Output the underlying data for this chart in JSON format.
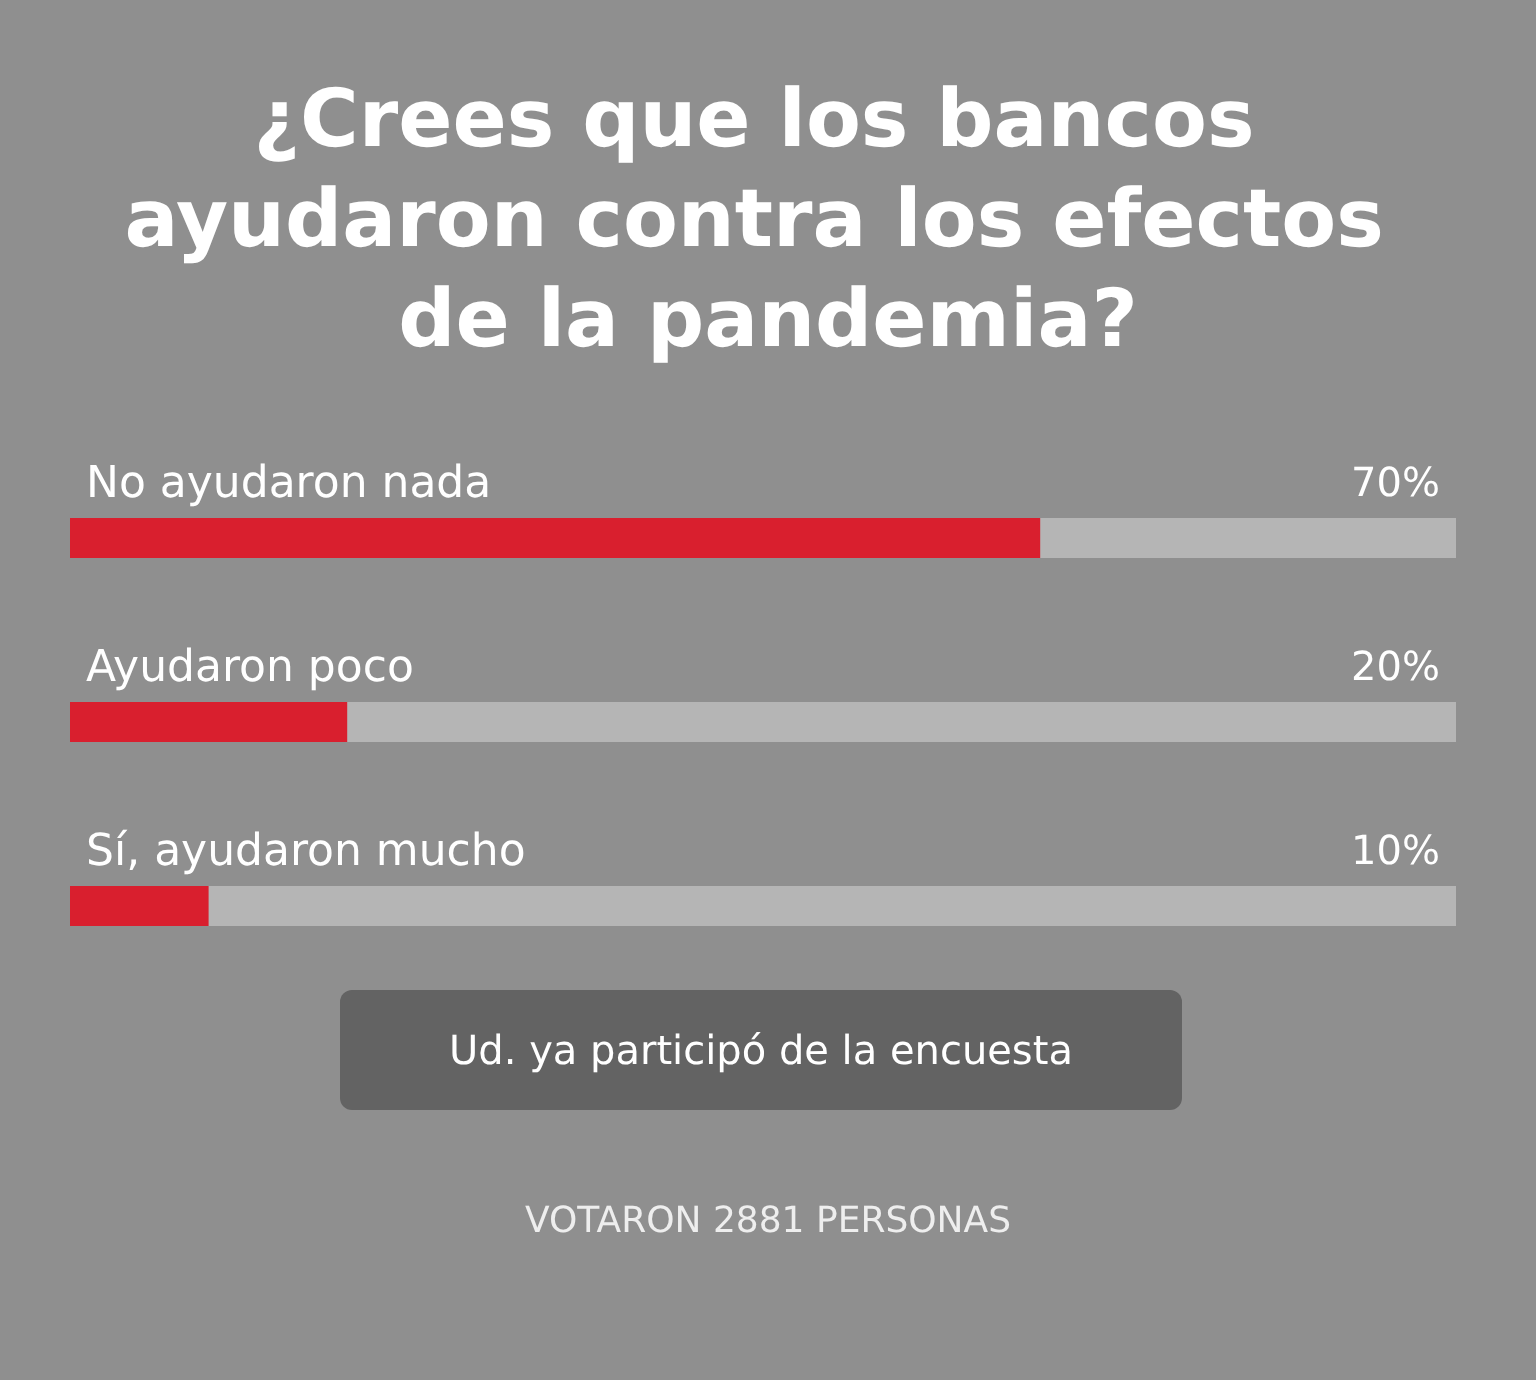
{
  "chart_data": {
    "type": "bar",
    "orientation": "horizontal",
    "title": "¿Crees que los bancos ayudaron contra los efectos de la pandemia?",
    "categories": [
      "No ayudaron nada",
      "Ayudaron poco",
      "Sí, ayudaron mucho"
    ],
    "values": [
      70,
      20,
      10
    ],
    "value_labels": [
      "70%",
      "20%",
      "10%"
    ],
    "color": "#d91f2e",
    "xlim": [
      0,
      100
    ],
    "annotations": [
      "Ud. ya participó de la encuesta",
      "VOTARON 2881 PERSONAS"
    ]
  }
}
